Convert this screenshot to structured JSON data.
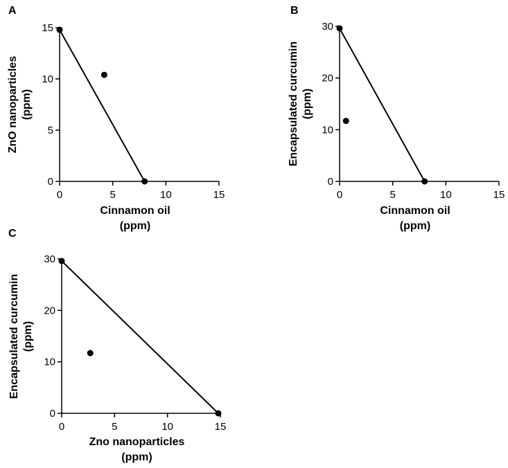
{
  "chart_data": [
    {
      "panel": "A",
      "type": "scatter",
      "xlabel": [
        "Cinnamon oil",
        "(ppm)"
      ],
      "ylabel": [
        "ZnO nanoparticles",
        "(ppm)"
      ],
      "xlim": [
        0,
        15
      ],
      "ylim": [
        0,
        15
      ],
      "xticks": [
        0,
        5,
        10,
        15
      ],
      "yticks": [
        0,
        5,
        10,
        15
      ],
      "grid": false,
      "line": {
        "x": [
          0,
          8
        ],
        "y": [
          14.8,
          0
        ]
      },
      "points": [
        {
          "x": 0,
          "y": 14.8
        },
        {
          "x": 8,
          "y": 0
        },
        {
          "x": 4.2,
          "y": 10.4
        }
      ]
    },
    {
      "panel": "B",
      "type": "scatter",
      "xlabel": [
        "Cinnamon oil",
        "(ppm)"
      ],
      "ylabel": [
        "Encapsulated curcumin",
        "(ppm)"
      ],
      "xlim": [
        0,
        15
      ],
      "ylim": [
        0,
        30
      ],
      "xticks": [
        0,
        5,
        10,
        15
      ],
      "yticks": [
        0,
        10,
        20,
        30
      ],
      "grid": false,
      "line": {
        "x": [
          0,
          8
        ],
        "y": [
          29.6,
          0
        ]
      },
      "points": [
        {
          "x": 0,
          "y": 29.6
        },
        {
          "x": 8,
          "y": 0
        },
        {
          "x": 0.6,
          "y": 11.7
        }
      ]
    },
    {
      "panel": "C",
      "type": "scatter",
      "xlabel": [
        "Zno nanoparticles",
        "(ppm)"
      ],
      "ylabel": [
        "Encapsulated curcumin",
        "(ppm)"
      ],
      "xlim": [
        0,
        15
      ],
      "ylim": [
        0,
        30
      ],
      "xticks": [
        0,
        5,
        10,
        15
      ],
      "yticks": [
        0,
        10,
        20,
        30
      ],
      "grid": false,
      "line": {
        "x": [
          0,
          14.8
        ],
        "y": [
          29.6,
          0
        ]
      },
      "points": [
        {
          "x": 0,
          "y": 29.6
        },
        {
          "x": 14.8,
          "y": 0
        },
        {
          "x": 2.7,
          "y": 11.7
        }
      ]
    }
  ]
}
